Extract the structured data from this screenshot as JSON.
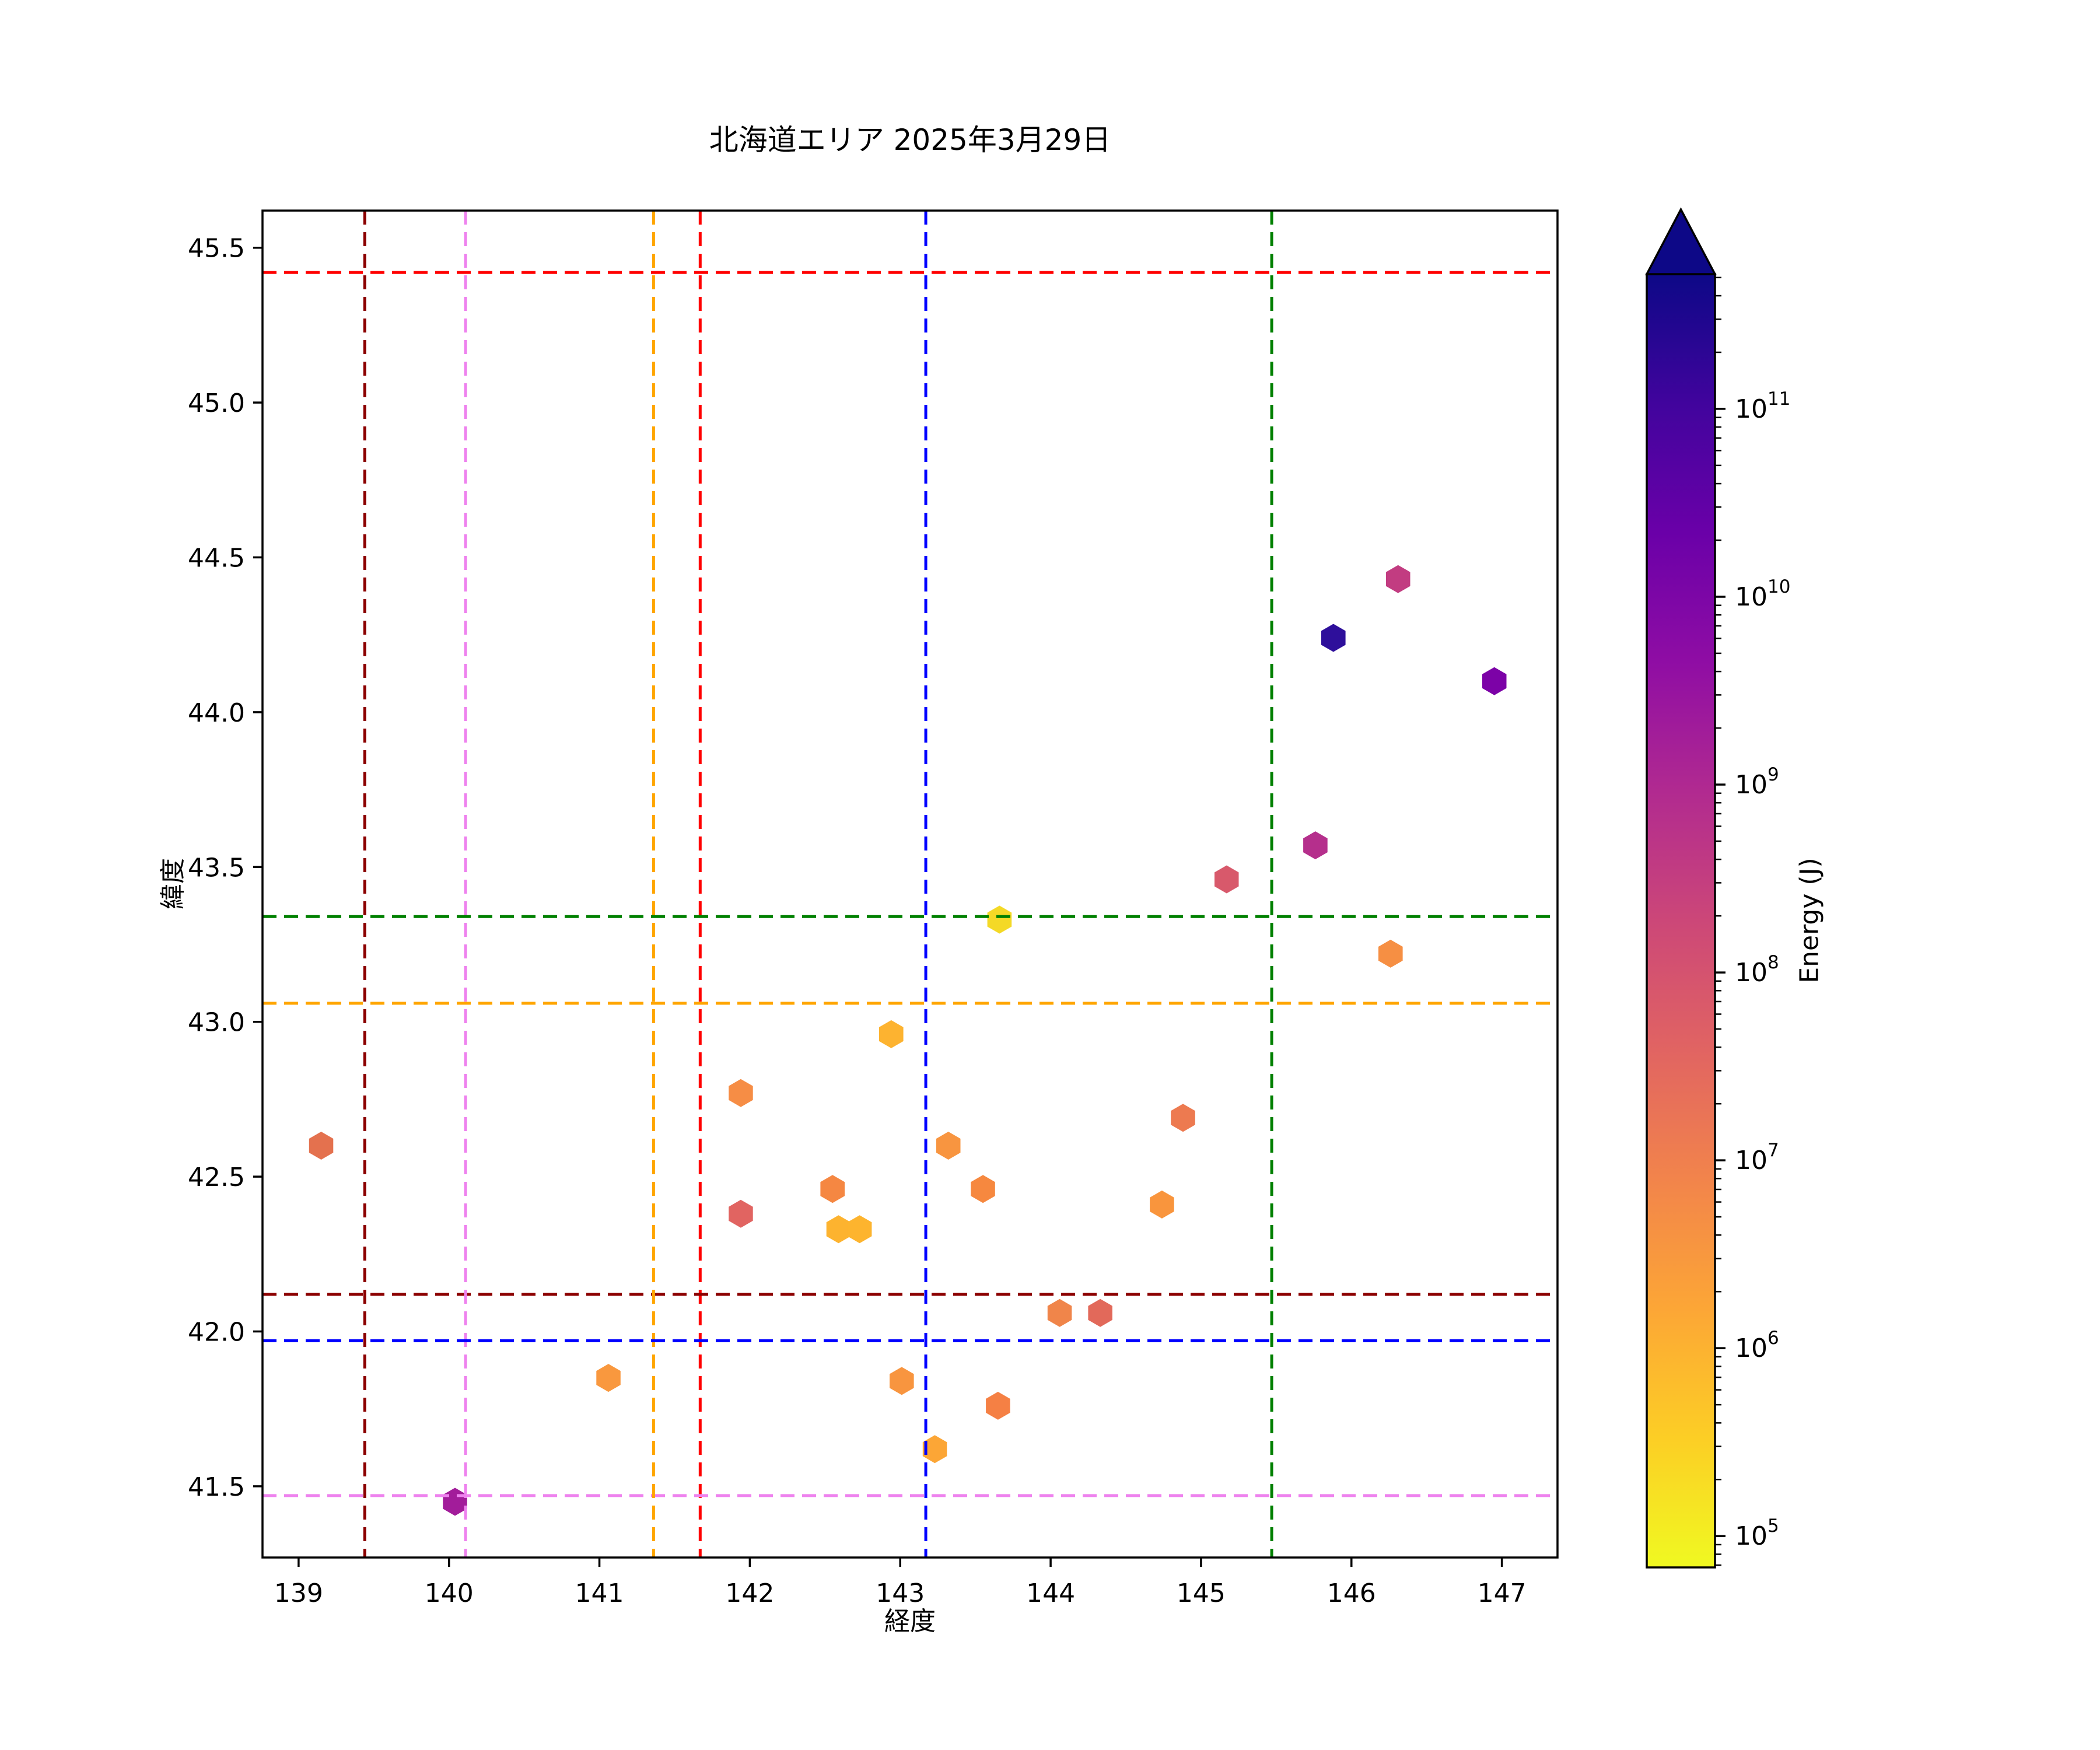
{
  "title": "北海道エリア 2025年3月29日",
  "chart_data": {
    "type": "scatter",
    "title": "北海道エリア 2025年3月29日",
    "xlabel": "経度",
    "ylabel": "緯度",
    "xlim": [
      138.76,
      147.37
    ],
    "ylim": [
      41.27,
      45.62
    ],
    "grid": false,
    "xticks": [
      139,
      140,
      141,
      142,
      143,
      144,
      145,
      146,
      147
    ],
    "yticks": [
      41.5,
      42.0,
      42.5,
      43.0,
      43.5,
      44.0,
      44.5,
      45.0,
      45.5
    ],
    "marker": "hexagon",
    "frame_color": "#000000",
    "background_color": "#ffffff",
    "points": [
      {
        "lon": 139.15,
        "lat": 42.6,
        "color": "#e4714e",
        "energy_j_est": "2.4e7"
      },
      {
        "lon": 140.04,
        "lat": 41.45,
        "color": "#a21c9a",
        "energy_j_est": "7e9"
      },
      {
        "lon": 141.06,
        "lat": 41.85,
        "color": "#f9983e",
        "energy_j_est": "3e6"
      },
      {
        "lon": 141.94,
        "lat": 42.77,
        "color": "#f68d45",
        "energy_j_est": "5e6"
      },
      {
        "lon": 141.94,
        "lat": 42.38,
        "color": "#e16461",
        "energy_j_est": "4e7"
      },
      {
        "lon": 142.55,
        "lat": 42.46,
        "color": "#f58742",
        "energy_j_est": "6e6"
      },
      {
        "lon": 142.59,
        "lat": 42.33,
        "color": "#fdb32f",
        "energy_j_est": "8.5e5"
      },
      {
        "lon": 142.73,
        "lat": 42.33,
        "color": "#fdb42e",
        "energy_j_est": "8e5"
      },
      {
        "lon": 142.94,
        "lat": 42.96,
        "color": "#fdb330",
        "energy_j_est": "8.5e5"
      },
      {
        "lon": 143.01,
        "lat": 41.84,
        "color": "#f8953f",
        "energy_j_est": "3.5e6"
      },
      {
        "lon": 143.23,
        "lat": 41.62,
        "color": "#fca636",
        "energy_j_est": "1.6e6"
      },
      {
        "lon": 143.32,
        "lat": 42.6,
        "color": "#f89540",
        "energy_j_est": "3.5e6"
      },
      {
        "lon": 143.55,
        "lat": 42.46,
        "color": "#f6883f",
        "energy_j_est": "5e6"
      },
      {
        "lon": 143.65,
        "lat": 41.76,
        "color": "#f58044",
        "energy_j_est": "9e6"
      },
      {
        "lon": 143.66,
        "lat": 43.33,
        "color": "#f4d926",
        "energy_j_est": "1.2e5"
      },
      {
        "lon": 144.06,
        "lat": 42.06,
        "color": "#f0854a",
        "energy_j_est": "8e6"
      },
      {
        "lon": 144.33,
        "lat": 42.06,
        "color": "#e2695a",
        "energy_j_est": "4e7"
      },
      {
        "lon": 144.74,
        "lat": 42.41,
        "color": "#f9953d",
        "energy_j_est": "3.5e6"
      },
      {
        "lon": 144.88,
        "lat": 42.69,
        "color": "#ed7a50",
        "energy_j_est": "1.3e7"
      },
      {
        "lon": 145.17,
        "lat": 43.46,
        "color": "#d8596b",
        "energy_j_est": "2e8"
      },
      {
        "lon": 145.76,
        "lat": 43.57,
        "color": "#b52f8c",
        "energy_j_est": "2e9"
      },
      {
        "lon": 145.88,
        "lat": 44.24,
        "color": "#2e0f9b",
        "energy_j_est": "2e11"
      },
      {
        "lon": 146.26,
        "lat": 43.22,
        "color": "#f68f43",
        "energy_j_est": "5e6"
      },
      {
        "lon": 146.31,
        "lat": 44.43,
        "color": "#c23c81",
        "energy_j_est": "7e8"
      },
      {
        "lon": 146.95,
        "lat": 44.1,
        "color": "#7c02a7",
        "energy_j_est": "3e10"
      }
    ],
    "reference_lines": [
      {
        "name": "red",
        "color": "#ff0000",
        "lon": 141.67,
        "lat": 45.42
      },
      {
        "name": "darkred",
        "color": "#8b0000",
        "lon": 139.44,
        "lat": 42.12
      },
      {
        "name": "violet",
        "color": "#ee82ee",
        "lon": 140.11,
        "lat": 41.47
      },
      {
        "name": "orange",
        "color": "#ffa500",
        "lon": 141.36,
        "lat": 43.06
      },
      {
        "name": "blue",
        "color": "#0000ff",
        "lon": 143.17,
        "lat": 41.97
      },
      {
        "name": "green",
        "color": "#008000",
        "lon": 145.47,
        "lat": 43.34
      }
    ],
    "colorbar": {
      "label": "Energy (J)",
      "scale": "log",
      "extend": "max",
      "colormap": "plasma_r",
      "tick_exponents": [
        5,
        6,
        7,
        8,
        9,
        10,
        11
      ],
      "tick_label_base": "10",
      "log_top": 11.717,
      "log_bottom": 4.833,
      "arrow_color": "#0d0887",
      "gradient_stops": [
        {
          "pos": 0.0,
          "color": "#0d0887"
        },
        {
          "pos": 0.1,
          "color": "#41049d"
        },
        {
          "pos": 0.2,
          "color": "#6a00a8"
        },
        {
          "pos": 0.3,
          "color": "#8f0da4"
        },
        {
          "pos": 0.4,
          "color": "#b12a90"
        },
        {
          "pos": 0.5,
          "color": "#cc4778"
        },
        {
          "pos": 0.6,
          "color": "#e16462"
        },
        {
          "pos": 0.7,
          "color": "#f2844b"
        },
        {
          "pos": 0.8,
          "color": "#fca636"
        },
        {
          "pos": 0.9,
          "color": "#fcce25"
        },
        {
          "pos": 1.0,
          "color": "#f0f921"
        }
      ]
    }
  }
}
